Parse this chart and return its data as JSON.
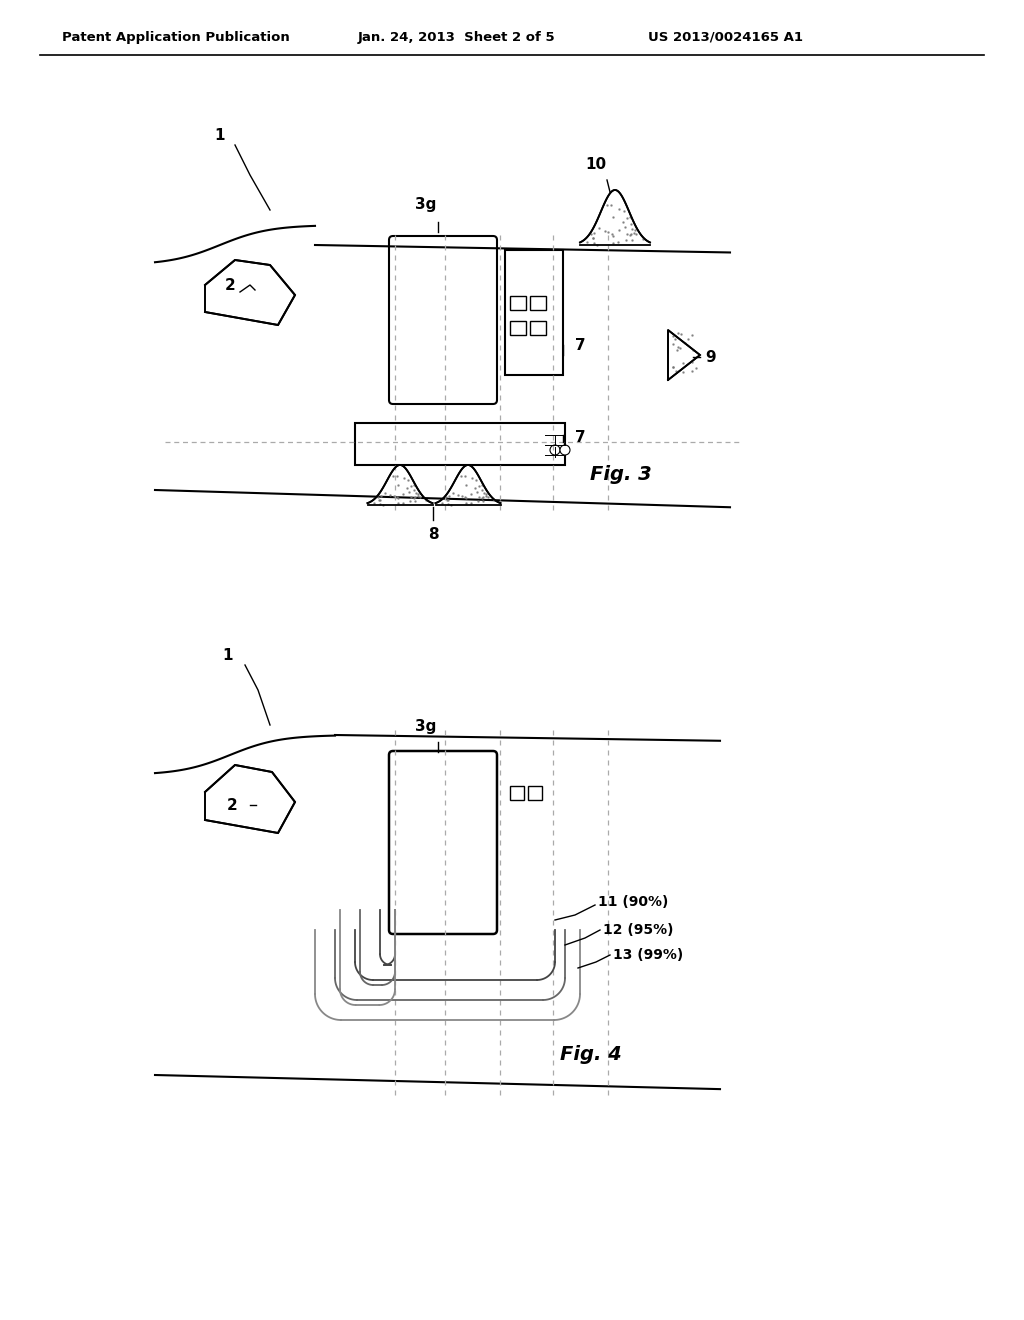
{
  "background_color": "#ffffff",
  "header_left": "Patent Application Publication",
  "header_mid": "Jan. 24, 2013  Sheet 2 of 5",
  "header_right": "US 2013/0024165 A1",
  "fig3_label": "Fig. 3",
  "fig4_label": "Fig. 4",
  "line_color": "#000000",
  "gray_color": "#aaaaaa",
  "light_gray": "#bbbbbb"
}
